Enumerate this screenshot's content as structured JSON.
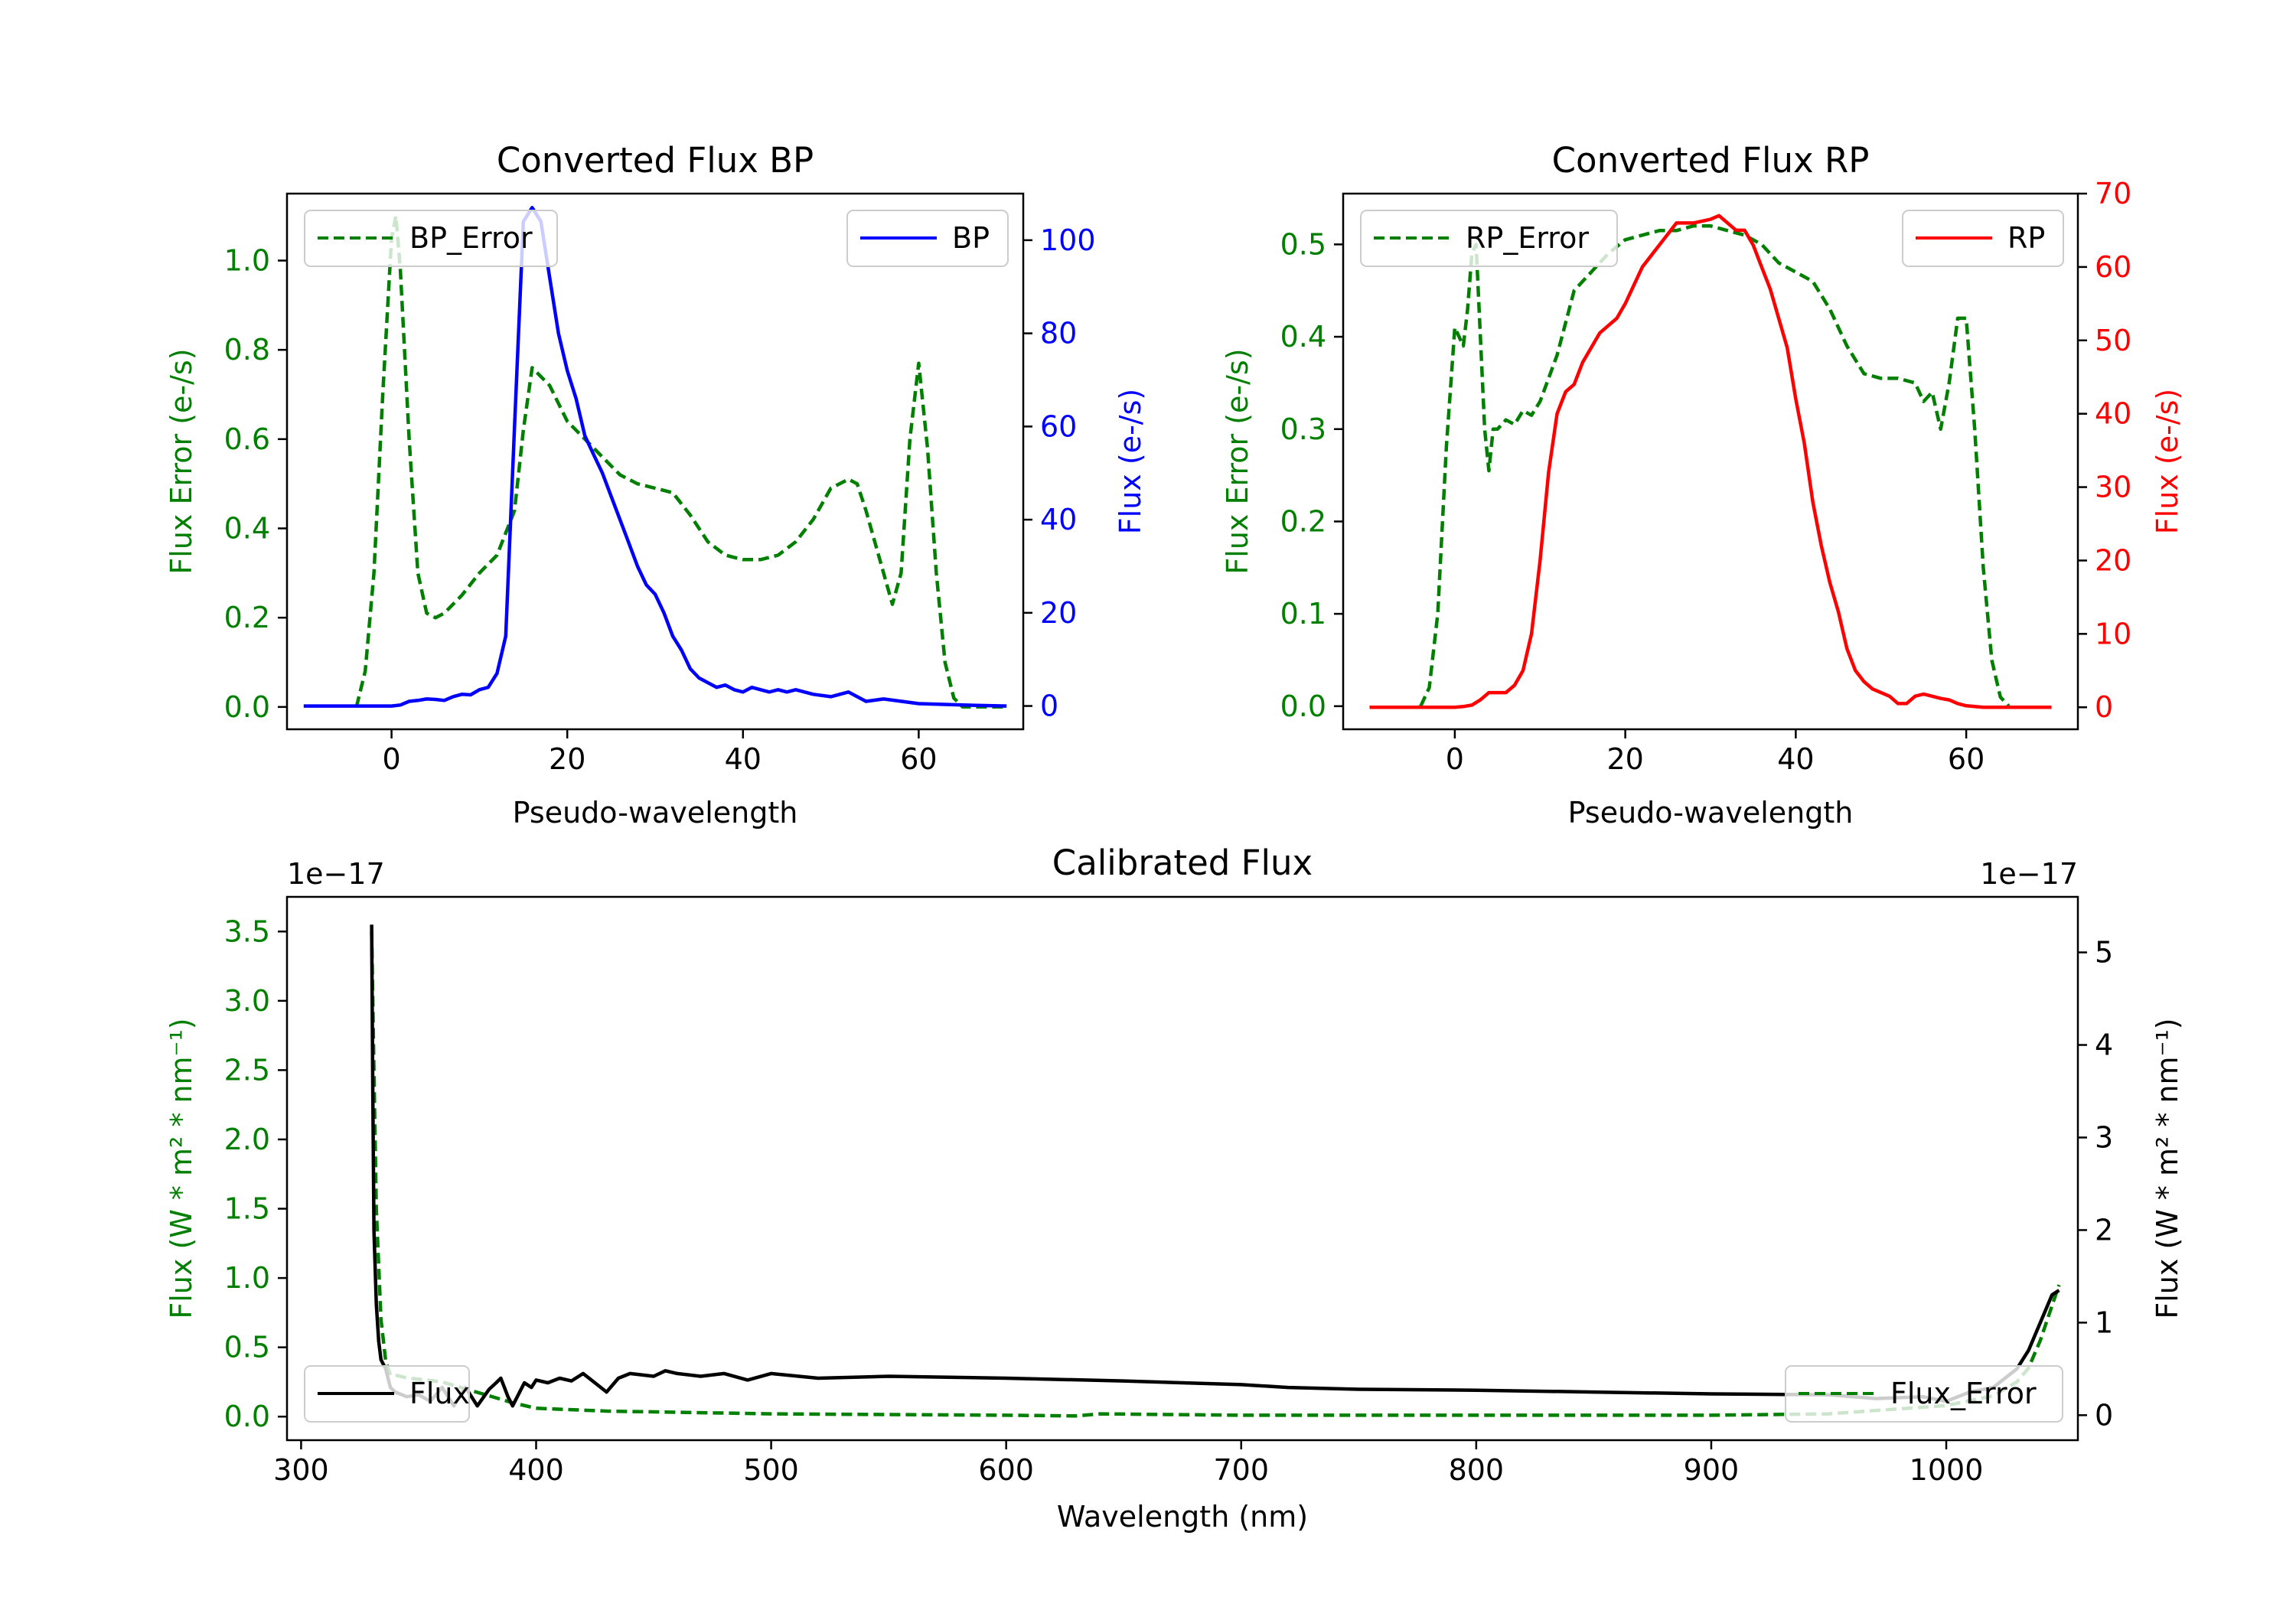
{
  "colors": {
    "bp": "#0000ff",
    "rp": "#ff0000",
    "error": "#007f00",
    "flux": "#000000",
    "axis": "#000000"
  },
  "chart_data": [
    {
      "id": "bp",
      "type": "line",
      "title": "Converted Flux BP",
      "xlabel": "Pseudo-wavelength",
      "ylabel_left": "Flux Error (e-/s)",
      "ylabel_right": "Flux (e-/s)",
      "xlim": [
        -11.9,
        71.9
      ],
      "ylim_left": [
        -0.05,
        1.15
      ],
      "ylim_right": [
        -5,
        110
      ],
      "xticks": [
        0,
        20,
        40,
        60
      ],
      "xtick_labels": [
        "0",
        "20",
        "40",
        "60"
      ],
      "yticks_left": [
        0.0,
        0.2,
        0.4,
        0.6,
        0.8,
        1.0
      ],
      "ytick_labels_left": [
        "0.0",
        "0.2",
        "0.4",
        "0.6",
        "0.8",
        "1.0"
      ],
      "yticks_right": [
        0,
        20,
        40,
        60,
        80,
        100
      ],
      "ytick_labels_right": [
        "0",
        "20",
        "40",
        "60",
        "80",
        "100"
      ],
      "legend_left": {
        "label": "BP_Error",
        "position": "upper left"
      },
      "legend_right": {
        "label": "BP",
        "position": "upper right"
      },
      "series": [
        {
          "name": "BP_Error",
          "axis": "left",
          "style": "dashed",
          "color_key": "error",
          "x": [
            -4,
            -3,
            -2,
            -1,
            0,
            0.5,
            1,
            2,
            3,
            4,
            5,
            6,
            8,
            10,
            12,
            14,
            15,
            16,
            18,
            20,
            22,
            24,
            26,
            28,
            30,
            32,
            34,
            36,
            38,
            40,
            42,
            44,
            46,
            48,
            50,
            52,
            53,
            54,
            56,
            57,
            58,
            59,
            60,
            61,
            62,
            63,
            64,
            65,
            66,
            68,
            70
          ],
          "y": [
            0.0,
            0.08,
            0.3,
            0.7,
            1.05,
            1.1,
            0.98,
            0.6,
            0.3,
            0.21,
            0.2,
            0.21,
            0.25,
            0.3,
            0.34,
            0.44,
            0.62,
            0.76,
            0.72,
            0.64,
            0.6,
            0.56,
            0.52,
            0.5,
            0.49,
            0.48,
            0.43,
            0.37,
            0.34,
            0.33,
            0.33,
            0.34,
            0.37,
            0.42,
            0.49,
            0.51,
            0.5,
            0.44,
            0.3,
            0.23,
            0.3,
            0.6,
            0.77,
            0.58,
            0.3,
            0.1,
            0.02,
            0.0,
            0.0,
            0.0,
            0.0
          ]
        },
        {
          "name": "BP",
          "axis": "right",
          "style": "solid",
          "color_key": "bp",
          "x": [
            -10,
            -6,
            -3,
            0,
            1,
            2,
            3,
            4,
            5,
            6,
            7,
            8,
            9,
            10,
            11,
            12,
            13,
            14,
            15,
            16,
            17,
            18,
            19,
            20,
            21,
            22,
            23,
            24,
            25,
            26,
            27,
            28,
            29,
            30,
            31,
            32,
            33,
            34,
            35,
            36,
            37,
            38,
            39,
            40,
            41,
            42,
            43,
            44,
            45,
            46,
            47,
            48,
            50,
            52,
            54,
            56,
            60,
            65,
            70
          ],
          "y": [
            0,
            0,
            0,
            0,
            0.2,
            1,
            1.2,
            1.5,
            1.4,
            1.2,
            2,
            2.5,
            2.4,
            3.5,
            4,
            7,
            15,
            60,
            104,
            107,
            104,
            92,
            80,
            72,
            66,
            58,
            54,
            50,
            45,
            40,
            35,
            30,
            26,
            24,
            20,
            15,
            12,
            8,
            6,
            5,
            4,
            4.5,
            3.5,
            3,
            4,
            3.5,
            3,
            3.5,
            3,
            3.5,
            3,
            2.5,
            2,
            3,
            1,
            1.5,
            0.5,
            0.2,
            0
          ]
        }
      ]
    },
    {
      "id": "rp",
      "type": "line",
      "title": "Converted Flux RP",
      "xlabel": "Pseudo-wavelength",
      "ylabel_left": "Flux Error (e-/s)",
      "ylabel_right": "Flux (e-/s)",
      "xlim": [
        -13.1,
        73.1
      ],
      "ylim_left": [
        -0.025,
        0.555
      ],
      "ylim_right": [
        -3,
        70
      ],
      "xticks": [
        0,
        20,
        40,
        60
      ],
      "xtick_labels": [
        "0",
        "20",
        "40",
        "60"
      ],
      "yticks_left": [
        0.0,
        0.1,
        0.2,
        0.3,
        0.4,
        0.5
      ],
      "ytick_labels_left": [
        "0.0",
        "0.1",
        "0.2",
        "0.3",
        "0.4",
        "0.5"
      ],
      "yticks_right": [
        0,
        10,
        20,
        30,
        40,
        50,
        60,
        70
      ],
      "ytick_labels_right": [
        "0",
        "10",
        "20",
        "30",
        "40",
        "50",
        "60",
        "70"
      ],
      "legend_left": {
        "label": "RP_Error",
        "position": "upper left"
      },
      "legend_right": {
        "label": "RP",
        "position": "upper right"
      },
      "series": [
        {
          "name": "RP_Error",
          "axis": "left",
          "style": "dashed",
          "color_key": "error",
          "x": [
            -4,
            -3,
            -2,
            -1,
            0,
            0.5,
            1,
            1.5,
            2,
            2.5,
            3,
            3.5,
            4,
            4.5,
            5,
            6,
            7,
            8,
            9,
            10,
            12,
            14,
            16,
            18,
            20,
            22,
            24,
            26,
            28,
            30,
            32,
            34,
            36,
            38,
            40,
            42,
            44,
            46,
            48,
            50,
            52,
            54,
            55,
            56,
            57,
            58,
            59,
            60,
            61,
            62,
            63,
            64,
            65
          ],
          "y": [
            0.0,
            0.02,
            0.1,
            0.28,
            0.41,
            0.4,
            0.39,
            0.43,
            0.49,
            0.5,
            0.4,
            0.3,
            0.255,
            0.3,
            0.3,
            0.31,
            0.305,
            0.32,
            0.315,
            0.33,
            0.38,
            0.45,
            0.47,
            0.49,
            0.505,
            0.51,
            0.515,
            0.515,
            0.52,
            0.52,
            0.515,
            0.51,
            0.5,
            0.48,
            0.47,
            0.46,
            0.43,
            0.39,
            0.36,
            0.355,
            0.355,
            0.35,
            0.33,
            0.34,
            0.3,
            0.35,
            0.42,
            0.42,
            0.3,
            0.15,
            0.05,
            0.01,
            0.0
          ]
        },
        {
          "name": "RP",
          "axis": "right",
          "style": "solid",
          "color_key": "rp",
          "x": [
            -10,
            -5,
            -2,
            0,
            1,
            2,
            3,
            4,
            5,
            6,
            7,
            8,
            9,
            10,
            11,
            12,
            13,
            14,
            15,
            16,
            17,
            18,
            19,
            20,
            22,
            24,
            26,
            28,
            30,
            31,
            32,
            33,
            34,
            35,
            36,
            37,
            38,
            39,
            40,
            41,
            42,
            43,
            44,
            45,
            46,
            47,
            48,
            49,
            50,
            51,
            52,
            53,
            54,
            55,
            56,
            57,
            58,
            59,
            60,
            61,
            62,
            63,
            64,
            66,
            70
          ],
          "y": [
            0,
            0,
            0,
            0,
            0.1,
            0.3,
            1,
            2,
            2,
            2,
            3,
            5,
            10,
            20,
            32,
            40,
            43,
            44,
            47,
            49,
            51,
            52,
            53,
            55,
            60,
            63,
            66,
            66,
            66.5,
            67,
            66,
            65,
            65,
            63,
            60,
            57,
            53,
            49,
            42,
            36,
            28,
            22,
            17,
            13,
            8,
            5,
            3.5,
            2.5,
            2,
            1.5,
            0.5,
            0.5,
            1.5,
            1.8,
            1.5,
            1.2,
            1,
            0.5,
            0.2,
            0.1,
            0,
            0,
            0,
            0,
            0
          ]
        }
      ]
    },
    {
      "id": "calibrated",
      "type": "line",
      "title": "Calibrated Flux",
      "xlabel": "Wavelength (nm)",
      "ylabel_left": "Flux (W * m² * nm⁻¹)",
      "ylabel_right": "Flux (W * m² * nm⁻¹)",
      "offset_left": "1e−17",
      "offset_right": "1e−17",
      "xlim": [
        294,
        1056
      ],
      "ylim_left": [
        -0.17,
        3.75
      ],
      "ylim_right": [
        -0.27,
        5.6
      ],
      "xticks": [
        300,
        400,
        500,
        600,
        700,
        800,
        900,
        1000
      ],
      "xtick_labels": [
        "300",
        "400",
        "500",
        "600",
        "700",
        "800",
        "900",
        "1000"
      ],
      "yticks_left": [
        0.0,
        0.5,
        1.0,
        1.5,
        2.0,
        2.5,
        3.0,
        3.5
      ],
      "ytick_labels_left": [
        "0.0",
        "0.5",
        "1.0",
        "1.5",
        "2.0",
        "2.5",
        "3.0",
        "3.5"
      ],
      "yticks_right": [
        0,
        1,
        2,
        3,
        4,
        5
      ],
      "ytick_labels_right": [
        "0",
        "1",
        "2",
        "3",
        "4",
        "5"
      ],
      "legend_left": {
        "label": "Flux",
        "position": "lower left"
      },
      "legend_right": {
        "label": "Flux_Error",
        "position": "lower right"
      },
      "series": [
        {
          "name": "Flux_Error",
          "axis": "left",
          "style": "dashed",
          "color_key": "error",
          "x": [
            330,
            331,
            332,
            334,
            336,
            338,
            340,
            345,
            350,
            360,
            370,
            380,
            390,
            400,
            430,
            500,
            600,
            630,
            640,
            700,
            800,
            900,
            950,
            1000,
            1020,
            1030,
            1035,
            1040,
            1045,
            1048
          ],
          "y": [
            3.5,
            2.5,
            1.5,
            0.7,
            0.4,
            0.3,
            0.3,
            0.28,
            0.27,
            0.25,
            0.2,
            0.15,
            0.1,
            0.06,
            0.04,
            0.02,
            0.01,
            0.005,
            0.02,
            0.01,
            0.01,
            0.01,
            0.02,
            0.08,
            0.15,
            0.25,
            0.35,
            0.55,
            0.8,
            0.95
          ]
        },
        {
          "name": "Flux",
          "axis": "right",
          "style": "solid",
          "color_key": "flux",
          "x": [
            330,
            330.5,
            331,
            332,
            333,
            334,
            336,
            338,
            340,
            345,
            350,
            355,
            360,
            365,
            370,
            375,
            380,
            383,
            385,
            388,
            390,
            392,
            395,
            398,
            400,
            405,
            410,
            415,
            420,
            425,
            430,
            435,
            440,
            450,
            455,
            460,
            470,
            480,
            490,
            500,
            520,
            550,
            600,
            650,
            700,
            720,
            750,
            800,
            850,
            900,
            950,
            970,
            990,
            1000,
            1010,
            1020,
            1030,
            1035,
            1040,
            1045,
            1048
          ],
          "y": [
            5.3,
            3.5,
            2.0,
            1.2,
            0.8,
            0.6,
            0.5,
            0.3,
            0.25,
            0.2,
            0.22,
            0.15,
            0.3,
            0.1,
            0.3,
            0.1,
            0.28,
            0.35,
            0.4,
            0.2,
            0.1,
            0.2,
            0.35,
            0.3,
            0.38,
            0.35,
            0.4,
            0.37,
            0.45,
            0.35,
            0.25,
            0.4,
            0.45,
            0.42,
            0.48,
            0.45,
            0.42,
            0.45,
            0.38,
            0.45,
            0.4,
            0.42,
            0.4,
            0.37,
            0.33,
            0.3,
            0.28,
            0.27,
            0.25,
            0.23,
            0.22,
            0.18,
            0.2,
            0.15,
            0.25,
            0.3,
            0.5,
            0.7,
            1.0,
            1.3,
            1.35
          ]
        }
      ]
    }
  ]
}
